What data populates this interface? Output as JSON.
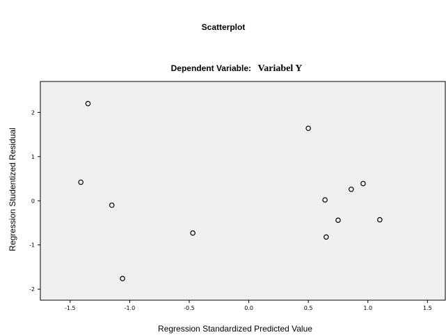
{
  "chart_data": {
    "type": "scatter",
    "title": "Scatterplot",
    "subtitle_prefix": "Dependent Variable:",
    "subtitle_variable": "Variabel Y",
    "xlabel": "Regression Standardized Predicted Value",
    "ylabel": "Regression Studentized Residual",
    "xlim": [
      -1.75,
      1.65
    ],
    "ylim": [
      -2.25,
      2.7
    ],
    "x_ticks": [
      -1.5,
      -1.0,
      -0.5,
      0.0,
      0.5,
      1.0,
      1.5
    ],
    "x_tick_labels": [
      "-1.5",
      "-1.0",
      "-0.5",
      "0.0",
      "0.5",
      "1.0",
      "1.5"
    ],
    "y_ticks": [
      -2,
      -1,
      0,
      1,
      2
    ],
    "y_tick_labels": [
      "-2",
      "-1",
      "0",
      "1",
      "2"
    ],
    "grid": false,
    "plot_background": "#f0f0f0",
    "marker": "open-circle",
    "points": [
      {
        "x": -1.35,
        "y": 2.2
      },
      {
        "x": -1.41,
        "y": 0.42
      },
      {
        "x": -1.15,
        "y": -0.1
      },
      {
        "x": -1.06,
        "y": -1.76
      },
      {
        "x": -0.47,
        "y": -0.73
      },
      {
        "x": 0.5,
        "y": 1.64
      },
      {
        "x": 0.64,
        "y": 0.02
      },
      {
        "x": 0.65,
        "y": -0.82
      },
      {
        "x": 0.75,
        "y": -0.44
      },
      {
        "x": 0.86,
        "y": 0.26
      },
      {
        "x": 0.96,
        "y": 0.39
      },
      {
        "x": 1.1,
        "y": -0.43
      }
    ]
  }
}
